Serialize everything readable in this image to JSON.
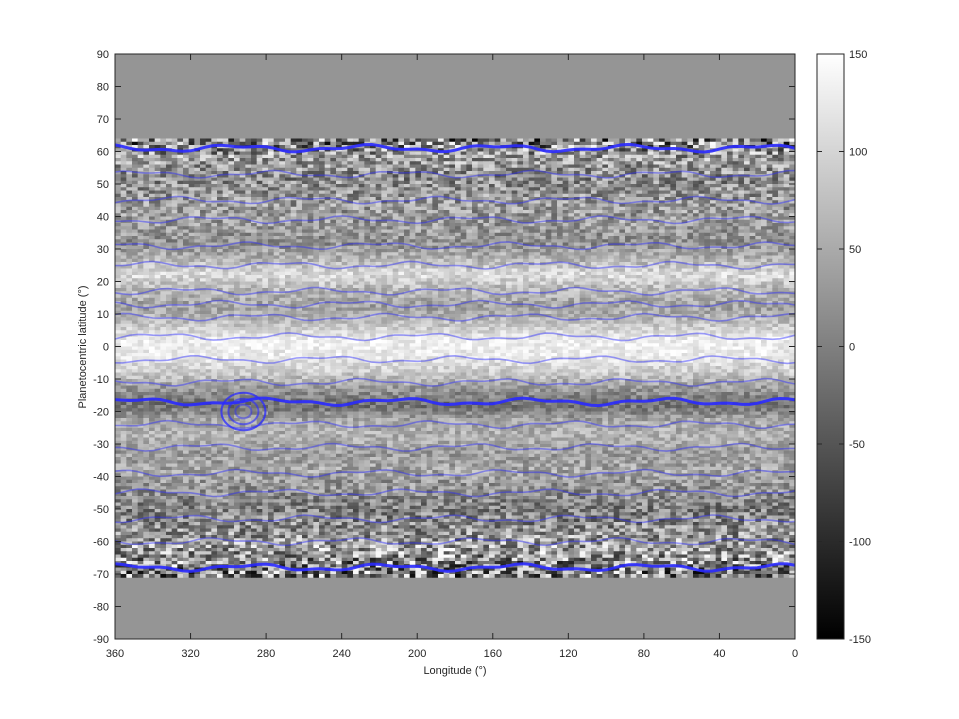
{
  "chart_data": {
    "type": "heatmap",
    "title": "",
    "xlabel": "Longitude (°)",
    "ylabel": "Planetocentric latitude (°)",
    "xlim": [
      360,
      0
    ],
    "x_reversed": true,
    "ylim": [
      -90,
      90
    ],
    "x_ticks": [
      "360",
      "320",
      "280",
      "240",
      "200",
      "160",
      "120",
      "80",
      "40",
      "0"
    ],
    "y_ticks": [
      "90",
      "80",
      "70",
      "60",
      "50",
      "40",
      "30",
      "20",
      "10",
      "0",
      "-10",
      "-20",
      "-30",
      "-40",
      "-50",
      "-60",
      "-70",
      "-80",
      "-90"
    ],
    "colorbar": {
      "colormap": "gray",
      "clim": [
        -150,
        150
      ],
      "ticks": [
        "150",
        "100",
        "50",
        "0",
        "-50",
        "-100",
        "-150"
      ]
    },
    "data_extent_latitude": [
      -71,
      64
    ],
    "no_data_color": "#959595",
    "overlay_color": "#2a2aff",
    "latitude_bands": [
      {
        "lat": 63,
        "value": 0,
        "noise": 150
      },
      {
        "lat": 58,
        "value": 40,
        "noise": 90
      },
      {
        "lat": 52,
        "value": 15,
        "noise": 80
      },
      {
        "lat": 45,
        "value": 30,
        "noise": 70
      },
      {
        "lat": 38,
        "value": 35,
        "noise": 60
      },
      {
        "lat": 32,
        "value": 20,
        "noise": 50
      },
      {
        "lat": 27,
        "value": 60,
        "noise": 40
      },
      {
        "lat": 22,
        "value": 110,
        "noise": 35
      },
      {
        "lat": 18,
        "value": 70,
        "noise": 40
      },
      {
        "lat": 12,
        "value": 40,
        "noise": 40
      },
      {
        "lat": 7,
        "value": 80,
        "noise": 35
      },
      {
        "lat": 2,
        "value": 130,
        "noise": 25
      },
      {
        "lat": -3,
        "value": 125,
        "noise": 25
      },
      {
        "lat": -8,
        "value": 90,
        "noise": 35
      },
      {
        "lat": -13,
        "value": 30,
        "noise": 40
      },
      {
        "lat": -18,
        "value": -20,
        "noise": 40
      },
      {
        "lat": -23,
        "value": 50,
        "noise": 40
      },
      {
        "lat": -28,
        "value": 60,
        "noise": 40
      },
      {
        "lat": -33,
        "value": 35,
        "noise": 45
      },
      {
        "lat": -38,
        "value": 45,
        "noise": 50
      },
      {
        "lat": -45,
        "value": 20,
        "noise": 60
      },
      {
        "lat": -50,
        "value": 0,
        "noise": 70
      },
      {
        "lat": -56,
        "value": 20,
        "noise": 90
      },
      {
        "lat": -62,
        "value": 40,
        "noise": 110
      },
      {
        "lat": -67,
        "value": 10,
        "noise": 140
      },
      {
        "lat": -71,
        "value": 0,
        "noise": 150
      }
    ],
    "contour_latitudes": [
      61,
      53,
      45,
      39,
      31,
      25,
      17,
      13,
      9,
      3,
      -4,
      -11,
      -17,
      -24,
      -31,
      -39,
      -45,
      -53,
      -60,
      -68
    ],
    "vortex": {
      "lon": 292,
      "lat": -20,
      "label": ""
    }
  }
}
